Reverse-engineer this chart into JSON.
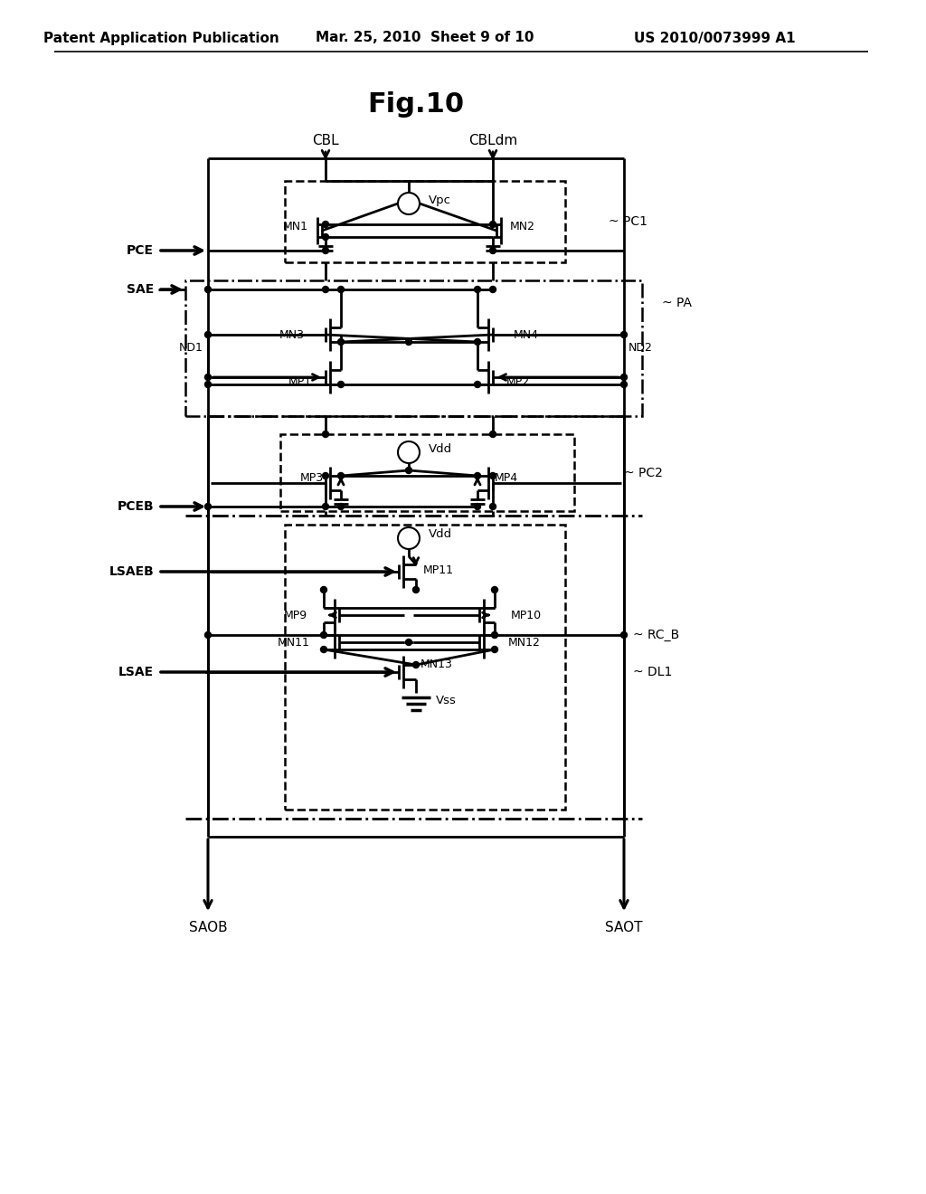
{
  "title": "Fig.10",
  "header_left": "Patent Application Publication",
  "header_mid": "Mar. 25, 2010  Sheet 9 of 10",
  "header_right": "US 2010/0073999 A1",
  "bg_color": "#ffffff",
  "text_color": "#000000",
  "line_color": "#000000"
}
